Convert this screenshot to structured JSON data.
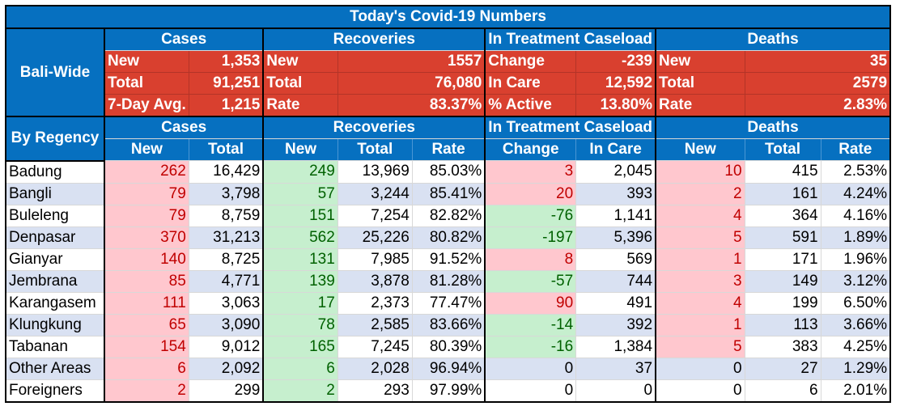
{
  "title": "Today's Covid-19 Numbers",
  "bali_wide": {
    "label": "Bali-Wide",
    "headers": [
      "Cases",
      "Recoveries",
      "In Treatment Caseload",
      "Deaths"
    ],
    "rows": [
      {
        "c_lbl": "New",
        "c_val": "1,353",
        "r_lbl": "New",
        "r_val": "1557",
        "t_lbl": "Change",
        "t_val": "-239",
        "d_lbl": "New",
        "d_val": "35"
      },
      {
        "c_lbl": "Total",
        "c_val": "91,251",
        "r_lbl": "Total",
        "r_val": "76,080",
        "t_lbl": "In Care",
        "t_val": "12,592",
        "d_lbl": "Total",
        "d_val": "2579"
      },
      {
        "c_lbl": "7-Day Avg.",
        "c_val": "1,215",
        "r_lbl": "Rate",
        "r_val": "83.37%",
        "t_lbl": "% Active",
        "t_val": "13.80%",
        "d_lbl": "Rate",
        "d_val": "2.83%"
      }
    ]
  },
  "by_regency": {
    "label": "By Regency",
    "group_headers": [
      "Cases",
      "Recoveries",
      "In Treatment Caseload",
      "Deaths"
    ],
    "sub_headers": [
      "New",
      "Total",
      "New",
      "Total",
      "Rate",
      "Change",
      "In Care",
      "New",
      "Total",
      "Rate"
    ],
    "rows": [
      {
        "name": "Badung",
        "cases_new": "262",
        "cases_total": "16,429",
        "rec_new": "249",
        "rec_total": "13,969",
        "rec_rate": "85.03%",
        "change": "3",
        "in_care": "2,045",
        "deaths_new": "10",
        "deaths_total": "415",
        "deaths_rate": "2.53%"
      },
      {
        "name": "Bangli",
        "cases_new": "79",
        "cases_total": "3,798",
        "rec_new": "57",
        "rec_total": "3,244",
        "rec_rate": "85.41%",
        "change": "20",
        "in_care": "393",
        "deaths_new": "2",
        "deaths_total": "161",
        "deaths_rate": "4.24%"
      },
      {
        "name": "Buleleng",
        "cases_new": "79",
        "cases_total": "8,759",
        "rec_new": "151",
        "rec_total": "7,254",
        "rec_rate": "82.82%",
        "change": "-76",
        "in_care": "1,141",
        "deaths_new": "4",
        "deaths_total": "364",
        "deaths_rate": "4.16%"
      },
      {
        "name": "Denpasar",
        "cases_new": "370",
        "cases_total": "31,213",
        "rec_new": "562",
        "rec_total": "25,226",
        "rec_rate": "80.82%",
        "change": "-197",
        "in_care": "5,396",
        "deaths_new": "5",
        "deaths_total": "591",
        "deaths_rate": "1.89%"
      },
      {
        "name": "Gianyar",
        "cases_new": "140",
        "cases_total": "8,725",
        "rec_new": "131",
        "rec_total": "7,985",
        "rec_rate": "91.52%",
        "change": "8",
        "in_care": "569",
        "deaths_new": "1",
        "deaths_total": "171",
        "deaths_rate": "1.96%"
      },
      {
        "name": "Jembrana",
        "cases_new": "85",
        "cases_total": "4,771",
        "rec_new": "139",
        "rec_total": "3,878",
        "rec_rate": "81.28%",
        "change": "-57",
        "in_care": "744",
        "deaths_new": "3",
        "deaths_total": "149",
        "deaths_rate": "3.12%"
      },
      {
        "name": "Karangasem",
        "cases_new": "111",
        "cases_total": "3,063",
        "rec_new": "17",
        "rec_total": "2,373",
        "rec_rate": "77.47%",
        "change": "90",
        "in_care": "491",
        "deaths_new": "4",
        "deaths_total": "199",
        "deaths_rate": "6.50%"
      },
      {
        "name": "Klungkung",
        "cases_new": "65",
        "cases_total": "3,090",
        "rec_new": "78",
        "rec_total": "2,585",
        "rec_rate": "83.66%",
        "change": "-14",
        "in_care": "392",
        "deaths_new": "1",
        "deaths_total": "113",
        "deaths_rate": "3.66%"
      },
      {
        "name": "Tabanan",
        "cases_new": "154",
        "cases_total": "9,012",
        "rec_new": "165",
        "rec_total": "7,245",
        "rec_rate": "80.39%",
        "change": "-16",
        "in_care": "1,384",
        "deaths_new": "5",
        "deaths_total": "383",
        "deaths_rate": "4.25%"
      },
      {
        "name": "Other Areas",
        "cases_new": "6",
        "cases_total": "2,092",
        "rec_new": "6",
        "rec_total": "2,028",
        "rec_rate": "96.94%",
        "change": "0",
        "in_care": "37",
        "deaths_new": "0",
        "deaths_total": "27",
        "deaths_rate": "1.29%"
      },
      {
        "name": "Foreigners",
        "cases_new": "2",
        "cases_total": "299",
        "rec_new": "2",
        "rec_total": "293",
        "rec_rate": "97.99%",
        "change": "0",
        "in_care": "0",
        "deaths_new": "0",
        "deaths_total": "6",
        "deaths_rate": "2.01%"
      }
    ]
  },
  "colors": {
    "header_blue": "#0670c0",
    "summary_red": "#d9402f",
    "increase_fill": "#ffc7ce",
    "increase_text": "#c00000",
    "decrease_fill": "#c6efce",
    "decrease_text": "#006100",
    "alt_row_blue": "#d9e1f2"
  }
}
